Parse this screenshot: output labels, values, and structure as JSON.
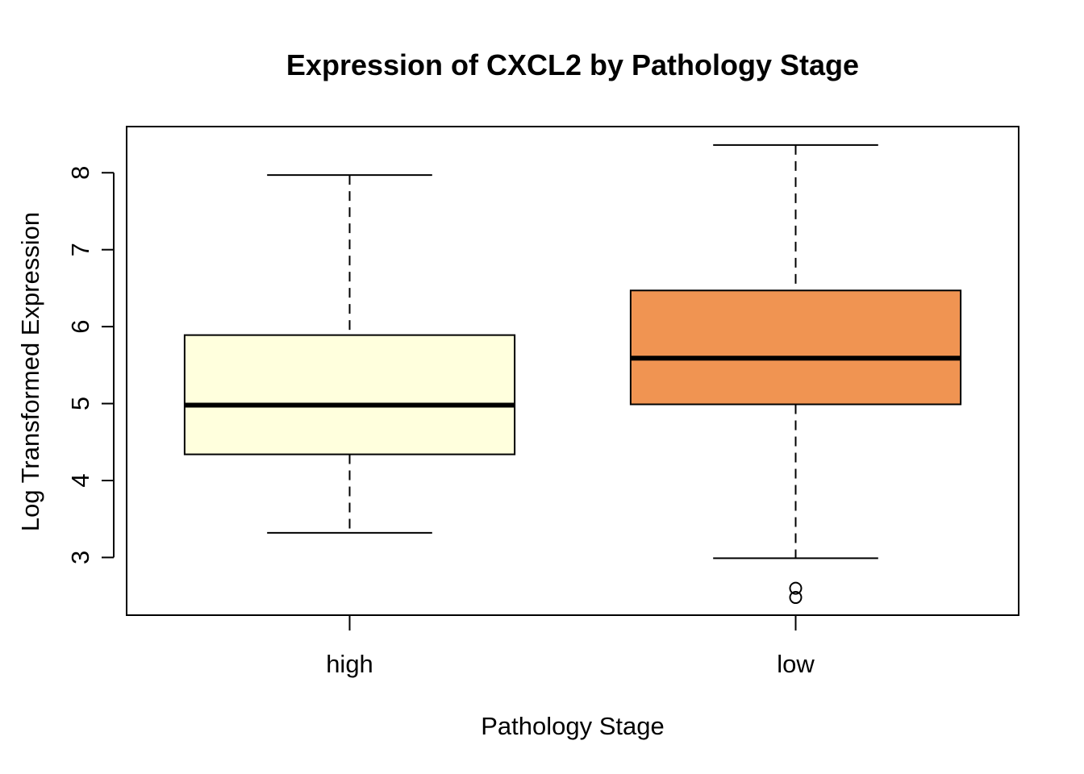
{
  "chart_data": {
    "type": "boxplot",
    "title": "Expression of CXCL2 by Pathology Stage",
    "xlabel": "Pathology Stage",
    "ylabel": "Log Transformed Expression",
    "ylim": [
      2.25,
      8.6
    ],
    "yticks": [
      3,
      4,
      5,
      6,
      7,
      8
    ],
    "categories": [
      "high",
      "low"
    ],
    "boxes": [
      {
        "name": "high",
        "whisker_low": 3.32,
        "q1": 4.34,
        "median": 4.98,
        "q3": 5.89,
        "whisker_high": 7.97,
        "outliers": [],
        "color": "#FFFFDD"
      },
      {
        "name": "low",
        "whisker_low": 2.99,
        "q1": 4.99,
        "median": 5.59,
        "q3": 6.47,
        "whisker_high": 8.36,
        "outliers": [
          2.48,
          2.6
        ],
        "color": "#F09452"
      }
    ],
    "grid": false,
    "legend": "none"
  }
}
